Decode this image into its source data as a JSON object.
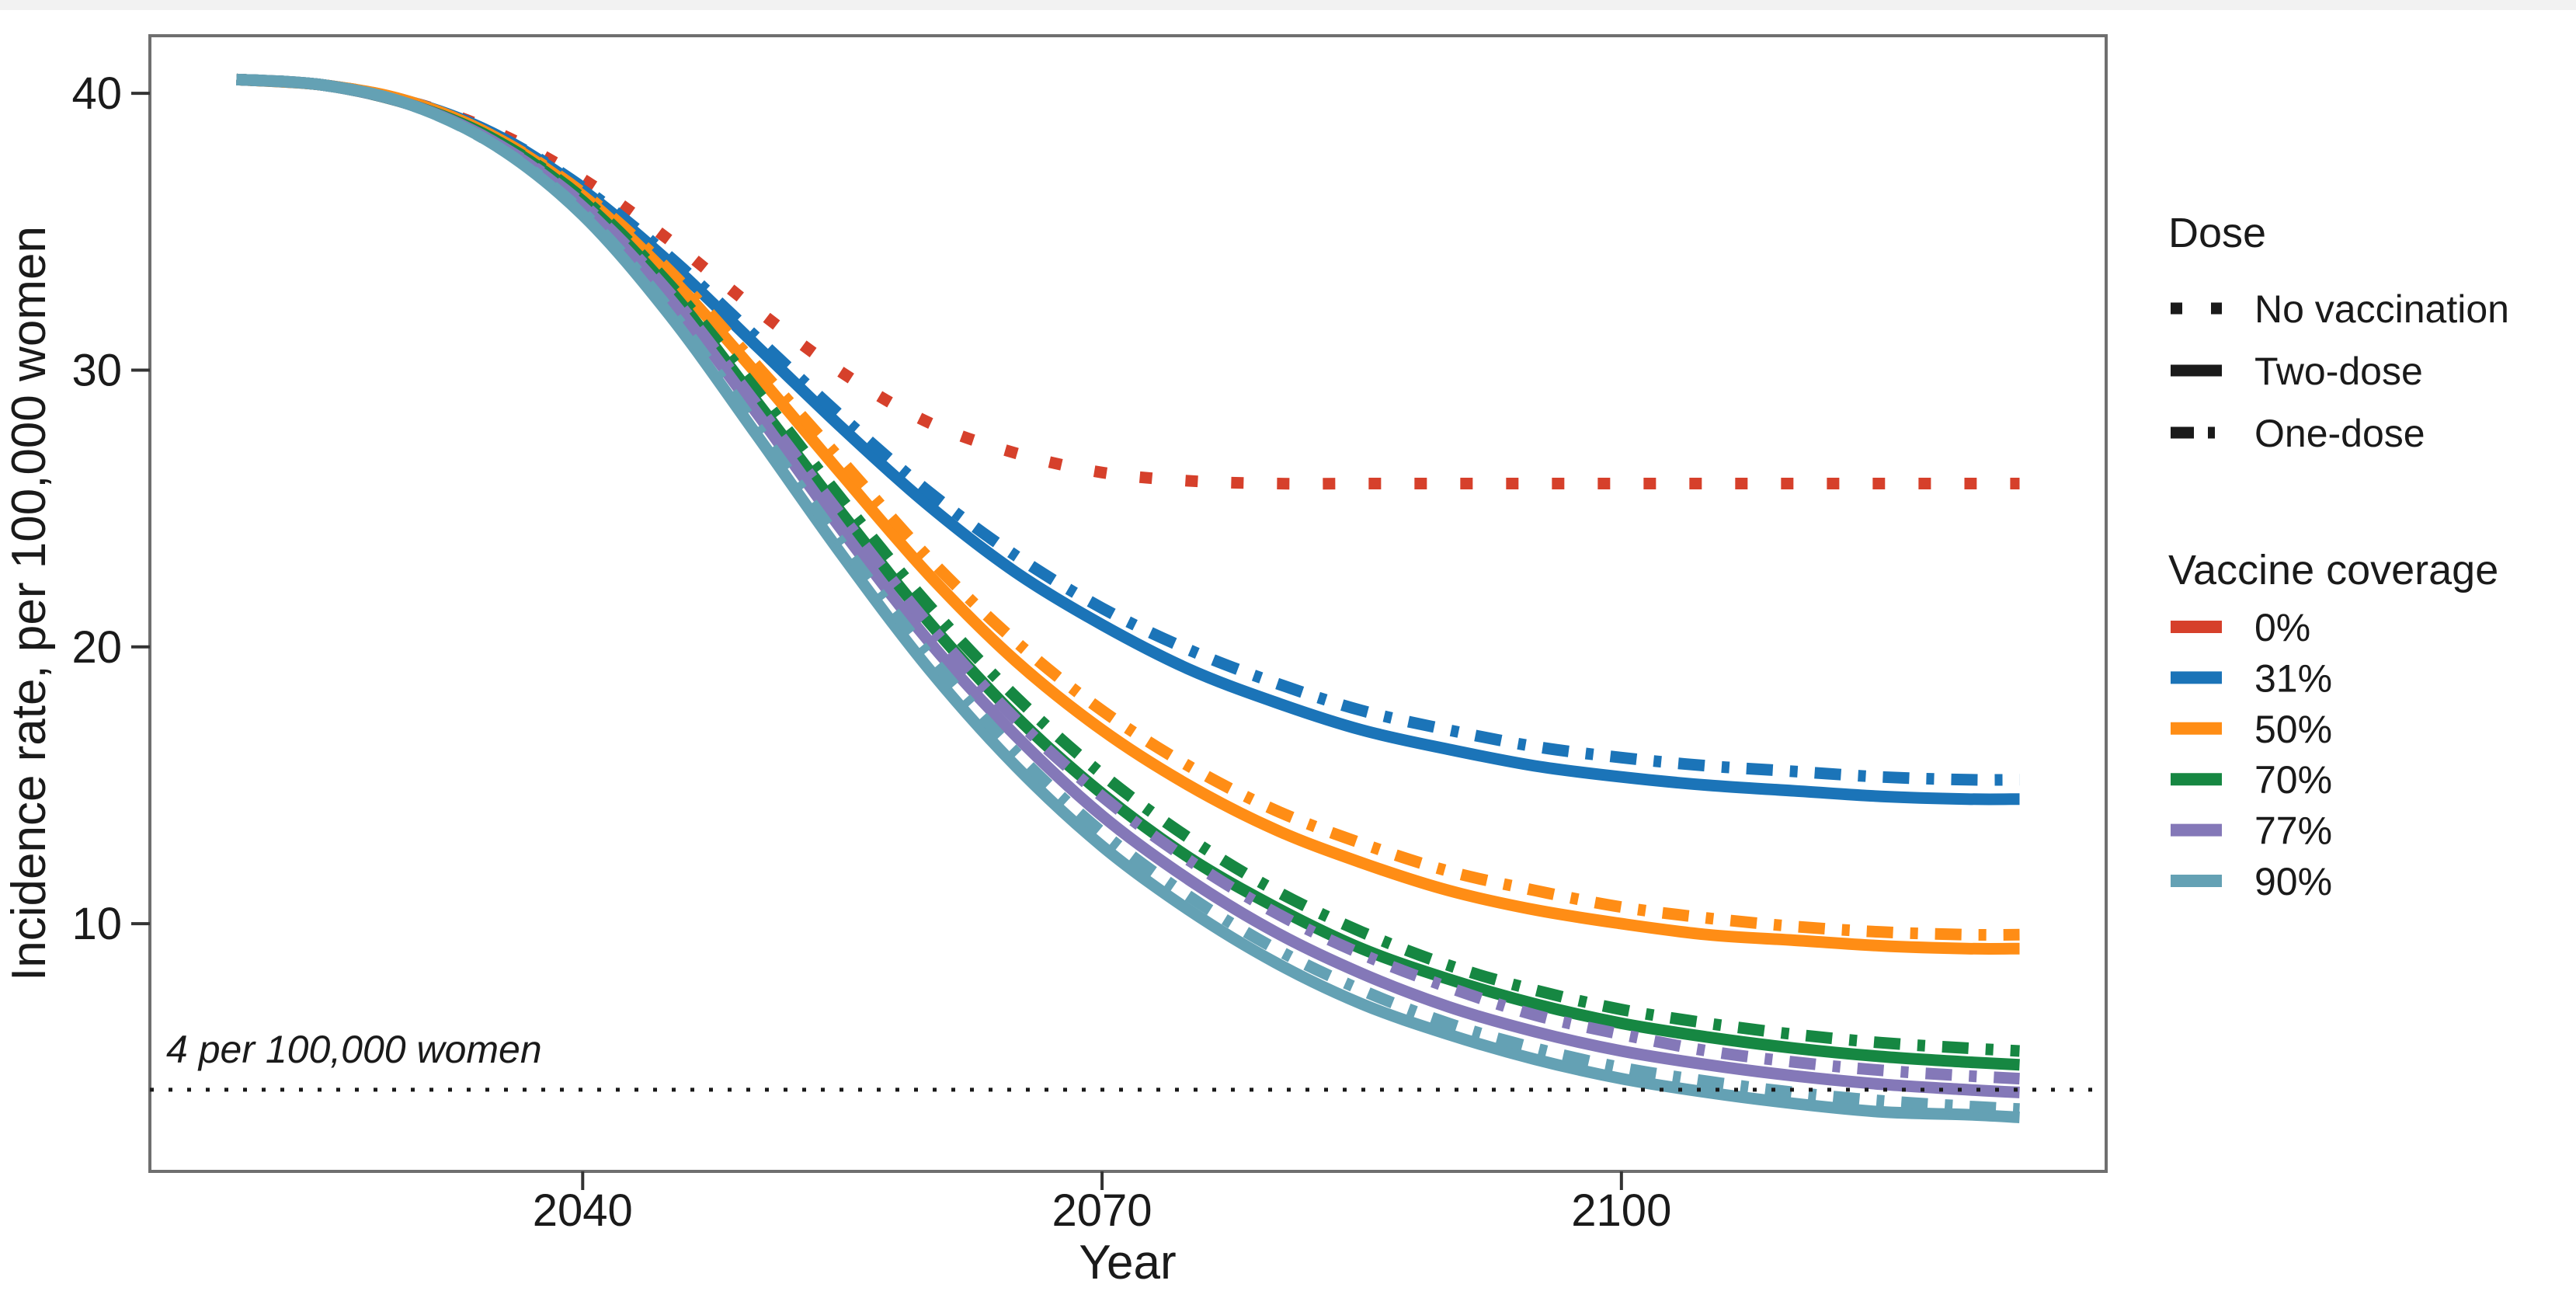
{
  "figure": {
    "background": "#ffffff",
    "top_strip_color": "#f2f2f2",
    "panel_border_color": "#6f6f6f",
    "tick_color": "#333333",
    "text_color": "#1a1a1a"
  },
  "chart_data": {
    "type": "line",
    "title": "",
    "xlabel": "Year",
    "ylabel": "Incidence rate, per 100,000 women",
    "xlim": [
      2015,
      2128
    ],
    "ylim": [
      1.05,
      42.08
    ],
    "x_ticks": [
      "2040",
      "2070",
      "2100"
    ],
    "x_tick_values": [
      2040,
      2070,
      2100
    ],
    "y_ticks": [
      "10",
      "20",
      "30",
      "40"
    ],
    "y_tick_values": [
      10,
      20,
      30,
      40
    ],
    "grid": false,
    "legend_position": "right",
    "reference_line": {
      "y": 4,
      "label": "4 per 100,000 women",
      "style": "dotted",
      "color": "#1a1a1a"
    },
    "years": [
      2020,
      2025,
      2030,
      2035,
      2040,
      2045,
      2050,
      2055,
      2060,
      2065,
      2070,
      2075,
      2080,
      2085,
      2090,
      2095,
      2100,
      2105,
      2110,
      2115,
      2120,
      2123
    ],
    "series": [
      {
        "id": "0-novaccination",
        "coverage": "0%",
        "dose": "No vaccination",
        "color": "#d6402b",
        "dash": "dotted",
        "values": [
          40.5,
          40.3,
          39.7,
          38.6,
          36.9,
          34.7,
          32.2,
          29.9,
          28.1,
          27.0,
          26.3,
          26.0,
          25.9,
          25.9,
          25.9,
          25.9,
          25.9,
          25.9,
          25.9,
          25.9,
          25.9,
          25.9
        ]
      },
      {
        "id": "31-two-dose",
        "coverage": "31%",
        "dose": "Two-dose",
        "color": "#1b74b8",
        "dash": "solid",
        "values": [
          40.5,
          40.3,
          39.7,
          38.5,
          36.5,
          33.9,
          30.9,
          27.9,
          25.1,
          22.7,
          20.8,
          19.2,
          18.0,
          17.0,
          16.3,
          15.7,
          15.3,
          15.0,
          14.8,
          14.6,
          14.5,
          14.5
        ]
      },
      {
        "id": "31-one-dose",
        "coverage": "31%",
        "dose": "One-dose",
        "color": "#1b74b8",
        "dash": "dashdot",
        "values": [
          40.5,
          40.3,
          39.7,
          38.5,
          36.6,
          34.1,
          31.2,
          28.3,
          25.6,
          23.3,
          21.4,
          19.9,
          18.7,
          17.7,
          17.0,
          16.4,
          16.0,
          15.7,
          15.5,
          15.3,
          15.2,
          15.2
        ]
      },
      {
        "id": "50-two-dose",
        "coverage": "50%",
        "dose": "Two-dose",
        "color": "#ff8d15",
        "dash": "solid",
        "values": [
          40.5,
          40.3,
          39.7,
          38.4,
          36.3,
          33.4,
          29.9,
          26.2,
          22.6,
          19.5,
          17.0,
          15.0,
          13.4,
          12.2,
          11.2,
          10.5,
          10.0,
          9.6,
          9.4,
          9.2,
          9.1,
          9.1
        ]
      },
      {
        "id": "50-one-dose",
        "coverage": "50%",
        "dose": "One-dose",
        "color": "#ff8d15",
        "dash": "dashdot",
        "values": [
          40.5,
          40.3,
          39.7,
          38.4,
          36.4,
          33.6,
          30.2,
          26.7,
          23.2,
          20.2,
          17.7,
          15.7,
          14.1,
          12.9,
          11.9,
          11.2,
          10.6,
          10.2,
          9.9,
          9.7,
          9.6,
          9.6
        ]
      },
      {
        "id": "70-two-dose",
        "coverage": "70%",
        "dose": "Two-dose",
        "color": "#168742",
        "dash": "solid",
        "values": [
          40.5,
          40.3,
          39.6,
          38.3,
          36.1,
          32.9,
          28.9,
          24.8,
          20.9,
          17.5,
          14.7,
          12.4,
          10.6,
          9.1,
          8.0,
          7.1,
          6.4,
          5.9,
          5.5,
          5.2,
          5.0,
          4.9
        ]
      },
      {
        "id": "70-one-dose",
        "coverage": "70%",
        "dose": "One-dose",
        "color": "#168742",
        "dash": "dashdot",
        "values": [
          40.5,
          40.3,
          39.6,
          38.3,
          36.2,
          33.1,
          29.3,
          25.3,
          21.5,
          18.2,
          15.4,
          13.1,
          11.2,
          9.7,
          8.5,
          7.6,
          6.9,
          6.4,
          6.0,
          5.7,
          5.5,
          5.4
        ]
      },
      {
        "id": "77-two-dose",
        "coverage": "77%",
        "dose": "Two-dose",
        "color": "#8478b8",
        "dash": "solid",
        "values": [
          40.5,
          40.3,
          39.6,
          38.2,
          35.9,
          32.6,
          28.5,
          24.2,
          20.2,
          16.8,
          13.9,
          11.6,
          9.7,
          8.2,
          7.0,
          6.1,
          5.4,
          4.9,
          4.5,
          4.2,
          4.0,
          3.9
        ]
      },
      {
        "id": "77-one-dose",
        "coverage": "77%",
        "dose": "One-dose",
        "color": "#8478b8",
        "dash": "dashdot",
        "values": [
          40.5,
          40.3,
          39.6,
          38.2,
          36.0,
          32.8,
          28.8,
          24.7,
          20.8,
          17.4,
          14.6,
          12.3,
          10.4,
          8.9,
          7.7,
          6.7,
          6.0,
          5.4,
          5.0,
          4.7,
          4.5,
          4.4
        ]
      },
      {
        "id": "90-two-dose",
        "coverage": "90%",
        "dose": "Two-dose",
        "color": "#64a1b4",
        "dash": "solid",
        "values": [
          40.5,
          40.3,
          39.6,
          38.1,
          35.6,
          32.0,
          27.7,
          23.3,
          19.2,
          15.7,
          12.8,
          10.5,
          8.6,
          7.1,
          6.0,
          5.1,
          4.4,
          3.9,
          3.5,
          3.2,
          3.1,
          3.0
        ]
      },
      {
        "id": "90-one-dose",
        "coverage": "90%",
        "dose": "One-dose",
        "color": "#64a1b4",
        "dash": "dashdot",
        "values": [
          40.5,
          40.3,
          39.6,
          38.1,
          35.7,
          32.2,
          28.0,
          23.7,
          19.7,
          16.2,
          13.3,
          11.0,
          9.1,
          7.6,
          6.4,
          5.5,
          4.8,
          4.3,
          3.9,
          3.6,
          3.4,
          3.3
        ]
      }
    ],
    "legend_dose": {
      "title": "Dose",
      "items": [
        {
          "label": "No vaccination",
          "dash": "dotted"
        },
        {
          "label": "Two-dose",
          "dash": "solid"
        },
        {
          "label": "One-dose",
          "dash": "dashdot"
        }
      ]
    },
    "legend_coverage": {
      "title": "Vaccine coverage",
      "items": [
        {
          "label": "0%",
          "color": "#d6402b"
        },
        {
          "label": "31%",
          "color": "#1b74b8"
        },
        {
          "label": "50%",
          "color": "#ff8d15"
        },
        {
          "label": "70%",
          "color": "#168742"
        },
        {
          "label": "77%",
          "color": "#8478b8"
        },
        {
          "label": "90%",
          "color": "#64a1b4"
        }
      ]
    }
  }
}
